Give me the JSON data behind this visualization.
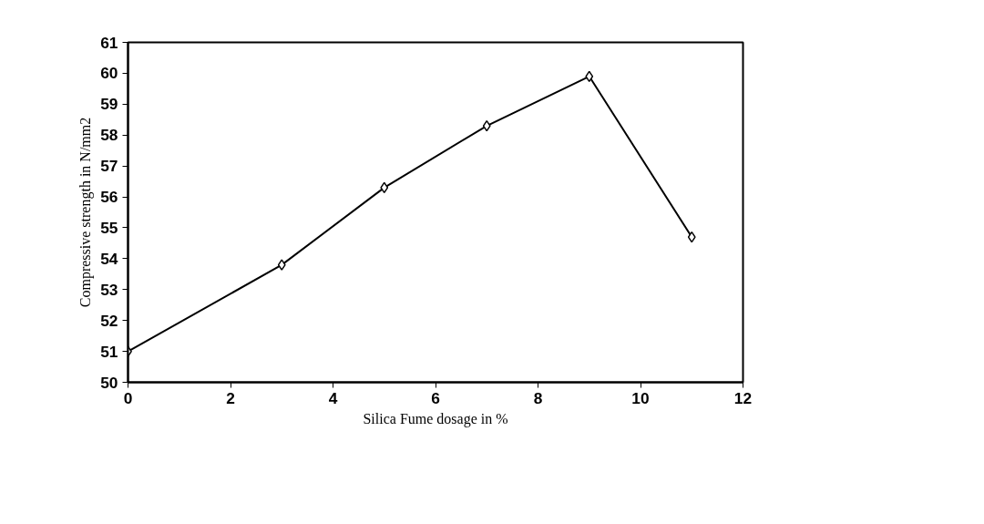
{
  "chart_data": {
    "type": "line",
    "xlabel": "Silica Fume dosage in %",
    "ylabel": "Compressive strength in N/mm2",
    "x": [
      0,
      3,
      5,
      7,
      9,
      11
    ],
    "series": [
      {
        "color": "#000000",
        "values": [
          51.0,
          53.8,
          56.3,
          58.3,
          59.9,
          54.7
        ]
      }
    ],
    "xlim": [
      0,
      12
    ],
    "xticks": [
      0,
      2,
      4,
      6,
      8,
      10,
      12
    ],
    "ylim": [
      50,
      61
    ],
    "yticks": [
      50,
      51,
      52,
      53,
      54,
      55,
      56,
      57,
      58,
      59,
      60,
      61
    ],
    "marker": "diamond",
    "line_style": "solid",
    "grid": false
  }
}
